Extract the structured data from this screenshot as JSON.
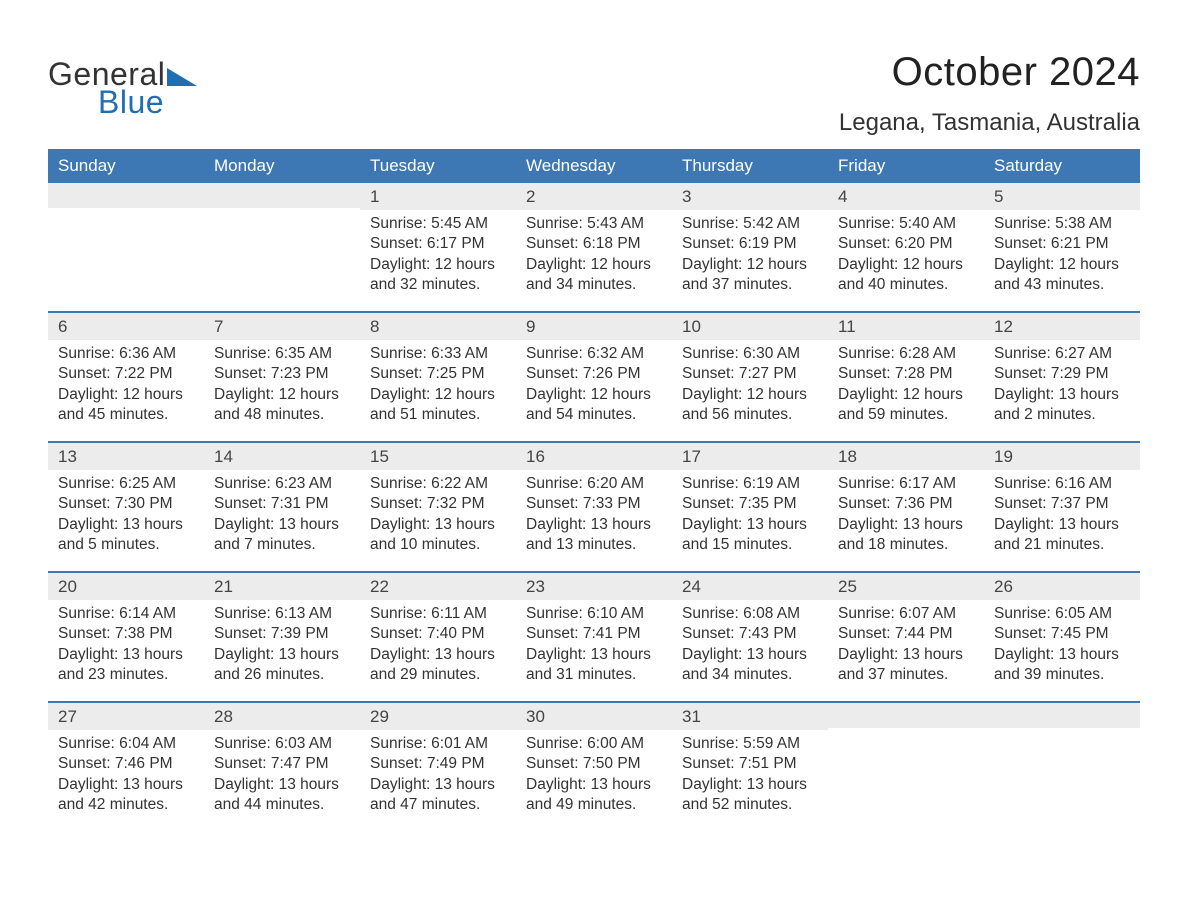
{
  "logo": {
    "text1": "General",
    "text2": "Blue",
    "accent_color": "#1f6fb2"
  },
  "title": "October 2024",
  "location": "Legana, Tasmania, Australia",
  "colors": {
    "header_bg": "#3d78b4",
    "header_text": "#ffffff",
    "daynum_bg": "#ececec",
    "week_border": "#3d78b4",
    "body_text": "#333333",
    "background": "#ffffff"
  },
  "typography": {
    "title_fontsize": 40,
    "location_fontsize": 24,
    "header_fontsize": 17,
    "daynum_fontsize": 17,
    "body_fontsize": 15.5,
    "font_family": "Arial"
  },
  "day_headers": [
    "Sunday",
    "Monday",
    "Tuesday",
    "Wednesday",
    "Thursday",
    "Friday",
    "Saturday"
  ],
  "weeks": [
    [
      {
        "n": "",
        "sunrise": "",
        "sunset": "",
        "daylight": ""
      },
      {
        "n": "",
        "sunrise": "",
        "sunset": "",
        "daylight": ""
      },
      {
        "n": "1",
        "sunrise": "Sunrise: 5:45 AM",
        "sunset": "Sunset: 6:17 PM",
        "daylight": "Daylight: 12 hours and 32 minutes."
      },
      {
        "n": "2",
        "sunrise": "Sunrise: 5:43 AM",
        "sunset": "Sunset: 6:18 PM",
        "daylight": "Daylight: 12 hours and 34 minutes."
      },
      {
        "n": "3",
        "sunrise": "Sunrise: 5:42 AM",
        "sunset": "Sunset: 6:19 PM",
        "daylight": "Daylight: 12 hours and 37 minutes."
      },
      {
        "n": "4",
        "sunrise": "Sunrise: 5:40 AM",
        "sunset": "Sunset: 6:20 PM",
        "daylight": "Daylight: 12 hours and 40 minutes."
      },
      {
        "n": "5",
        "sunrise": "Sunrise: 5:38 AM",
        "sunset": "Sunset: 6:21 PM",
        "daylight": "Daylight: 12 hours and 43 minutes."
      }
    ],
    [
      {
        "n": "6",
        "sunrise": "Sunrise: 6:36 AM",
        "sunset": "Sunset: 7:22 PM",
        "daylight": "Daylight: 12 hours and 45 minutes."
      },
      {
        "n": "7",
        "sunrise": "Sunrise: 6:35 AM",
        "sunset": "Sunset: 7:23 PM",
        "daylight": "Daylight: 12 hours and 48 minutes."
      },
      {
        "n": "8",
        "sunrise": "Sunrise: 6:33 AM",
        "sunset": "Sunset: 7:25 PM",
        "daylight": "Daylight: 12 hours and 51 minutes."
      },
      {
        "n": "9",
        "sunrise": "Sunrise: 6:32 AM",
        "sunset": "Sunset: 7:26 PM",
        "daylight": "Daylight: 12 hours and 54 minutes."
      },
      {
        "n": "10",
        "sunrise": "Sunrise: 6:30 AM",
        "sunset": "Sunset: 7:27 PM",
        "daylight": "Daylight: 12 hours and 56 minutes."
      },
      {
        "n": "11",
        "sunrise": "Sunrise: 6:28 AM",
        "sunset": "Sunset: 7:28 PM",
        "daylight": "Daylight: 12 hours and 59 minutes."
      },
      {
        "n": "12",
        "sunrise": "Sunrise: 6:27 AM",
        "sunset": "Sunset: 7:29 PM",
        "daylight": "Daylight: 13 hours and 2 minutes."
      }
    ],
    [
      {
        "n": "13",
        "sunrise": "Sunrise: 6:25 AM",
        "sunset": "Sunset: 7:30 PM",
        "daylight": "Daylight: 13 hours and 5 minutes."
      },
      {
        "n": "14",
        "sunrise": "Sunrise: 6:23 AM",
        "sunset": "Sunset: 7:31 PM",
        "daylight": "Daylight: 13 hours and 7 minutes."
      },
      {
        "n": "15",
        "sunrise": "Sunrise: 6:22 AM",
        "sunset": "Sunset: 7:32 PM",
        "daylight": "Daylight: 13 hours and 10 minutes."
      },
      {
        "n": "16",
        "sunrise": "Sunrise: 6:20 AM",
        "sunset": "Sunset: 7:33 PM",
        "daylight": "Daylight: 13 hours and 13 minutes."
      },
      {
        "n": "17",
        "sunrise": "Sunrise: 6:19 AM",
        "sunset": "Sunset: 7:35 PM",
        "daylight": "Daylight: 13 hours and 15 minutes."
      },
      {
        "n": "18",
        "sunrise": "Sunrise: 6:17 AM",
        "sunset": "Sunset: 7:36 PM",
        "daylight": "Daylight: 13 hours and 18 minutes."
      },
      {
        "n": "19",
        "sunrise": "Sunrise: 6:16 AM",
        "sunset": "Sunset: 7:37 PM",
        "daylight": "Daylight: 13 hours and 21 minutes."
      }
    ],
    [
      {
        "n": "20",
        "sunrise": "Sunrise: 6:14 AM",
        "sunset": "Sunset: 7:38 PM",
        "daylight": "Daylight: 13 hours and 23 minutes."
      },
      {
        "n": "21",
        "sunrise": "Sunrise: 6:13 AM",
        "sunset": "Sunset: 7:39 PM",
        "daylight": "Daylight: 13 hours and 26 minutes."
      },
      {
        "n": "22",
        "sunrise": "Sunrise: 6:11 AM",
        "sunset": "Sunset: 7:40 PM",
        "daylight": "Daylight: 13 hours and 29 minutes."
      },
      {
        "n": "23",
        "sunrise": "Sunrise: 6:10 AM",
        "sunset": "Sunset: 7:41 PM",
        "daylight": "Daylight: 13 hours and 31 minutes."
      },
      {
        "n": "24",
        "sunrise": "Sunrise: 6:08 AM",
        "sunset": "Sunset: 7:43 PM",
        "daylight": "Daylight: 13 hours and 34 minutes."
      },
      {
        "n": "25",
        "sunrise": "Sunrise: 6:07 AM",
        "sunset": "Sunset: 7:44 PM",
        "daylight": "Daylight: 13 hours and 37 minutes."
      },
      {
        "n": "26",
        "sunrise": "Sunrise: 6:05 AM",
        "sunset": "Sunset: 7:45 PM",
        "daylight": "Daylight: 13 hours and 39 minutes."
      }
    ],
    [
      {
        "n": "27",
        "sunrise": "Sunrise: 6:04 AM",
        "sunset": "Sunset: 7:46 PM",
        "daylight": "Daylight: 13 hours and 42 minutes."
      },
      {
        "n": "28",
        "sunrise": "Sunrise: 6:03 AM",
        "sunset": "Sunset: 7:47 PM",
        "daylight": "Daylight: 13 hours and 44 minutes."
      },
      {
        "n": "29",
        "sunrise": "Sunrise: 6:01 AM",
        "sunset": "Sunset: 7:49 PM",
        "daylight": "Daylight: 13 hours and 47 minutes."
      },
      {
        "n": "30",
        "sunrise": "Sunrise: 6:00 AM",
        "sunset": "Sunset: 7:50 PM",
        "daylight": "Daylight: 13 hours and 49 minutes."
      },
      {
        "n": "31",
        "sunrise": "Sunrise: 5:59 AM",
        "sunset": "Sunset: 7:51 PM",
        "daylight": "Daylight: 13 hours and 52 minutes."
      },
      {
        "n": "",
        "sunrise": "",
        "sunset": "",
        "daylight": ""
      },
      {
        "n": "",
        "sunrise": "",
        "sunset": "",
        "daylight": ""
      }
    ]
  ]
}
